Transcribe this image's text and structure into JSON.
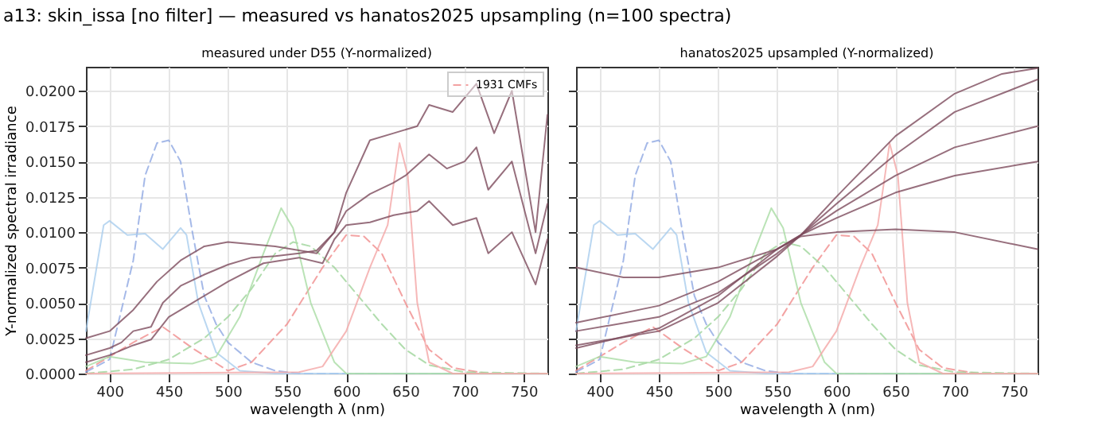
{
  "chart_data": [
    {
      "type": "line",
      "title": "a13: skin_issa [no filter] — measured vs hanatos2025 upsampling (n=100 spectra)",
      "subtitle": "measured under D55 (Y-normalized)",
      "xlabel": "wavelength λ  (nm)",
      "ylabel": "Y-normalized spectral irradiance",
      "xlim": [
        380,
        770
      ],
      "ylim": [
        0,
        0.0217
      ],
      "xticks": [
        400,
        450,
        500,
        550,
        600,
        650,
        700,
        750
      ],
      "yticks": [
        {
          "value": 0,
          "label": "0.0000"
        },
        {
          "value": 0.0025,
          "label": "0.0025"
        },
        {
          "value": 0.005,
          "label": "0.0050"
        },
        {
          "value": 0.0075,
          "label": "0.0075"
        },
        {
          "value": 0.01,
          "label": "0.0100"
        },
        {
          "value": 0.0125,
          "label": "0.0125"
        },
        {
          "value": 0.015,
          "label": "0.0150"
        },
        {
          "value": 0.0175,
          "label": "0.0175"
        },
        {
          "value": 0.02,
          "label": "0.0200"
        }
      ],
      "grid": true,
      "legend": "top right",
      "series": [
        {
          "name": "1931 CMFs",
          "color": "#f08c8c",
          "line_style": "dashed",
          "x": [
            380,
            420,
            445,
            470,
            500,
            520,
            550,
            580,
            600,
            615,
            630,
            650,
            670,
            690,
            720,
            770
          ],
          "values": [
            0.0002,
            0.0022,
            0.0033,
            0.0018,
            0.0002,
            0.0008,
            0.0035,
            0.0075,
            0.0098,
            0.0097,
            0.0085,
            0.005,
            0.0017,
            0.0004,
            0,
            0
          ]
        },
        {
          "color": "#9ed49a",
          "line_style": "dashed",
          "x": [
            380,
            420,
            450,
            480,
            500,
            520,
            540,
            555,
            570,
            590,
            610,
            630,
            650,
            670,
            700,
            770
          ],
          "values": [
            0,
            0.0003,
            0.001,
            0.0025,
            0.004,
            0.006,
            0.0085,
            0.0093,
            0.009,
            0.0075,
            0.0055,
            0.0035,
            0.0017,
            0.0006,
            0.0001,
            0
          ]
        },
        {
          "color": "#8ea8e2",
          "line_style": "dashed",
          "x": [
            380,
            400,
            420,
            430,
            440,
            450,
            460,
            470,
            480,
            490,
            500,
            520,
            540,
            560,
            770
          ],
          "values": [
            0.0001,
            0.001,
            0.008,
            0.014,
            0.0163,
            0.0165,
            0.015,
            0.01,
            0.0055,
            0.0035,
            0.0022,
            0.0008,
            0.0002,
            0,
            0
          ]
        },
        {
          "color": "#a9cdee",
          "line_style": "solid",
          "x": [
            380,
            395,
            400,
            415,
            430,
            445,
            460,
            465,
            475,
            490,
            510,
            540,
            770
          ],
          "values": [
            0.003,
            0.0105,
            0.0108,
            0.0098,
            0.0099,
            0.0088,
            0.0103,
            0.0098,
            0.005,
            0.0015,
            0.0002,
            0,
            0
          ]
        },
        {
          "color": "#a9dca4",
          "line_style": "solid",
          "x": [
            380,
            400,
            430,
            470,
            490,
            510,
            530,
            545,
            555,
            570,
            590,
            600,
            770
          ],
          "values": [
            0.0005,
            0.0012,
            0.0008,
            0.0007,
            0.0012,
            0.004,
            0.0085,
            0.0117,
            0.0103,
            0.005,
            0.0008,
            0,
            0
          ]
        },
        {
          "color": "#f4a6a6",
          "line_style": "solid",
          "x": [
            380,
            560,
            580,
            600,
            620,
            635,
            645,
            652,
            660,
            670,
            690,
            770
          ],
          "values": [
            0,
            0.0001,
            0.0005,
            0.003,
            0.0075,
            0.0105,
            0.0163,
            0.014,
            0.005,
            0.0008,
            0,
            0
          ]
        },
        {
          "color": "#7d4b5d",
          "line_style": "solid",
          "x": [
            380,
            400,
            420,
            440,
            460,
            480,
            500,
            540,
            575,
            590,
            600,
            620,
            640,
            660,
            670,
            690,
            710,
            725,
            740,
            760,
            770
          ],
          "values": [
            0.0025,
            0.003,
            0.0045,
            0.0065,
            0.008,
            0.009,
            0.0093,
            0.009,
            0.0085,
            0.01,
            0.0128,
            0.0165,
            0.017,
            0.0175,
            0.019,
            0.0185,
            0.0205,
            0.017,
            0.02,
            0.01,
            0.0183
          ]
        },
        {
          "color": "#7d4b5d",
          "line_style": "solid",
          "x": [
            380,
            400,
            410,
            420,
            435,
            445,
            460,
            480,
            500,
            520,
            540,
            560,
            575,
            590,
            600,
            620,
            640,
            650,
            670,
            685,
            700,
            710,
            720,
            740,
            760,
            770
          ],
          "values": [
            0.0013,
            0.0018,
            0.0022,
            0.003,
            0.0033,
            0.005,
            0.0062,
            0.007,
            0.0077,
            0.0082,
            0.0083,
            0.0085,
            0.0087,
            0.01,
            0.0115,
            0.0127,
            0.0135,
            0.014,
            0.0155,
            0.0145,
            0.015,
            0.016,
            0.013,
            0.015,
            0.0085,
            0.012
          ]
        },
        {
          "color": "#7d4b5d",
          "line_style": "solid",
          "x": [
            380,
            400,
            420,
            435,
            450,
            470,
            500,
            530,
            560,
            580,
            590,
            600,
            620,
            640,
            660,
            670,
            690,
            710,
            720,
            740,
            760,
            770
          ],
          "values": [
            0.0008,
            0.0013,
            0.002,
            0.0024,
            0.004,
            0.005,
            0.0065,
            0.0078,
            0.0082,
            0.0078,
            0.0095,
            0.0105,
            0.0107,
            0.0112,
            0.0115,
            0.0122,
            0.0105,
            0.011,
            0.0085,
            0.01,
            0.0063,
            0.0095
          ]
        }
      ]
    },
    {
      "type": "line",
      "subtitle": "hanatos2025 upsampled (Y-normalized)",
      "xlabel": "wavelength λ  (nm)",
      "xlim": [
        380,
        770
      ],
      "ylim": [
        0,
        0.0217
      ],
      "xticks": [
        400,
        450,
        500,
        550,
        600,
        650,
        700,
        750
      ],
      "yticks": [
        0,
        0.0025,
        0.005,
        0.0075,
        0.01,
        0.0125,
        0.015,
        0.0175,
        0.02
      ],
      "grid": true,
      "tick_labels": "x",
      "series": [
        {
          "color": "#f08c8c",
          "line_style": "dashed",
          "x": [
            380,
            420,
            445,
            470,
            500,
            520,
            550,
            580,
            600,
            615,
            630,
            650,
            670,
            690,
            720,
            770
          ],
          "values": [
            0.0002,
            0.0022,
            0.0033,
            0.0018,
            0.0002,
            0.0008,
            0.0035,
            0.0075,
            0.0098,
            0.0097,
            0.0085,
            0.005,
            0.0017,
            0.0004,
            0,
            0
          ]
        },
        {
          "color": "#9ed49a",
          "line_style": "dashed",
          "x": [
            380,
            420,
            450,
            480,
            500,
            520,
            540,
            555,
            570,
            590,
            610,
            630,
            650,
            670,
            700,
            770
          ],
          "values": [
            0,
            0.0003,
            0.001,
            0.0025,
            0.004,
            0.006,
            0.0085,
            0.0093,
            0.009,
            0.0075,
            0.0055,
            0.0035,
            0.0017,
            0.0006,
            0.0001,
            0
          ]
        },
        {
          "color": "#8ea8e2",
          "line_style": "dashed",
          "x": [
            380,
            400,
            420,
            430,
            440,
            450,
            460,
            470,
            480,
            490,
            500,
            520,
            540,
            560,
            770
          ],
          "values": [
            0.0001,
            0.001,
            0.008,
            0.014,
            0.0163,
            0.0165,
            0.015,
            0.01,
            0.0055,
            0.0035,
            0.0022,
            0.0008,
            0.0002,
            0,
            0
          ]
        },
        {
          "color": "#a9cdee",
          "line_style": "solid",
          "x": [
            380,
            395,
            400,
            415,
            430,
            445,
            460,
            465,
            475,
            490,
            510,
            540,
            770
          ],
          "values": [
            0.003,
            0.0105,
            0.0108,
            0.0098,
            0.0099,
            0.0088,
            0.0103,
            0.0098,
            0.005,
            0.0015,
            0.0002,
            0,
            0
          ]
        },
        {
          "color": "#a9dca4",
          "line_style": "solid",
          "x": [
            380,
            400,
            430,
            470,
            490,
            510,
            530,
            545,
            555,
            570,
            590,
            600,
            770
          ],
          "values": [
            0.0005,
            0.0012,
            0.0008,
            0.0007,
            0.0012,
            0.004,
            0.0085,
            0.0117,
            0.0103,
            0.005,
            0.0008,
            0,
            0
          ]
        },
        {
          "color": "#f4a6a6",
          "line_style": "solid",
          "x": [
            380,
            560,
            580,
            600,
            620,
            635,
            645,
            652,
            660,
            670,
            690,
            770
          ],
          "values": [
            0,
            0.0001,
            0.0005,
            0.003,
            0.0075,
            0.0105,
            0.0163,
            0.014,
            0.005,
            0.0008,
            0,
            0
          ]
        },
        {
          "color": "#7d4b5d",
          "line_style": "solid",
          "x": [
            380,
            450,
            500,
            550,
            570,
            600,
            650,
            700,
            740,
            770
          ],
          "values": [
            0.0036,
            0.0048,
            0.0065,
            0.0088,
            0.0098,
            0.0125,
            0.0168,
            0.0198,
            0.0212,
            0.0216
          ]
        },
        {
          "color": "#7d4b5d",
          "line_style": "solid",
          "x": [
            380,
            450,
            500,
            550,
            570,
            600,
            650,
            700,
            770
          ],
          "values": [
            0.003,
            0.004,
            0.0057,
            0.0085,
            0.0098,
            0.012,
            0.0155,
            0.0185,
            0.0208
          ]
        },
        {
          "color": "#7d4b5d",
          "line_style": "solid",
          "x": [
            380,
            450,
            500,
            550,
            570,
            600,
            650,
            700,
            770
          ],
          "values": [
            0.002,
            0.003,
            0.005,
            0.0083,
            0.0098,
            0.0115,
            0.014,
            0.016,
            0.0175
          ]
        },
        {
          "color": "#7d4b5d",
          "line_style": "solid",
          "x": [
            380,
            450,
            500,
            550,
            570,
            600,
            650,
            700,
            770
          ],
          "values": [
            0.0018,
            0.0032,
            0.0055,
            0.0088,
            0.0098,
            0.011,
            0.0128,
            0.014,
            0.015
          ]
        },
        {
          "color": "#7d4b5d",
          "line_style": "solid",
          "x": [
            380,
            420,
            450,
            500,
            550,
            570,
            600,
            650,
            700,
            770
          ],
          "values": [
            0.0075,
            0.0068,
            0.0068,
            0.0075,
            0.0088,
            0.0097,
            0.01,
            0.0102,
            0.01,
            0.0088
          ]
        }
      ]
    }
  ]
}
